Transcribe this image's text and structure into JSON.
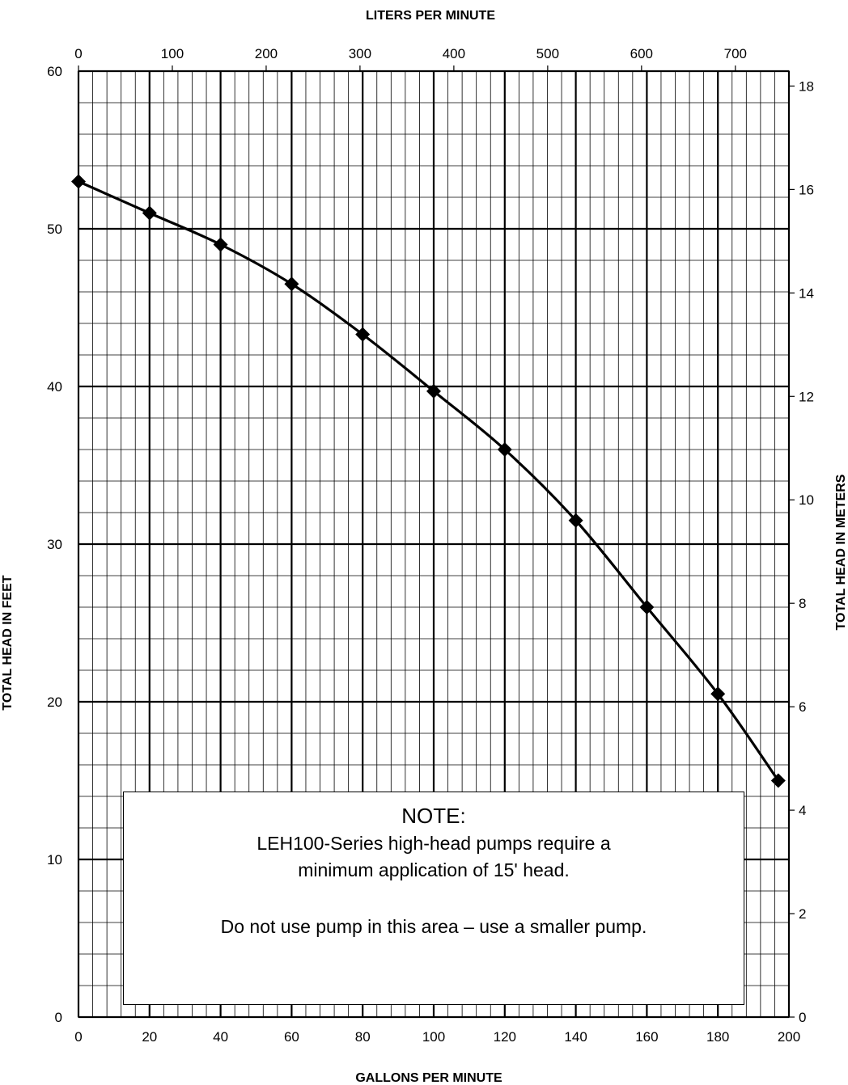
{
  "chart_data": {
    "type": "line",
    "title": "",
    "x_axis": {
      "label": "GALLONS PER MINUTE",
      "range": [
        0,
        200
      ],
      "ticks": [
        0,
        20,
        40,
        60,
        80,
        100,
        120,
        140,
        160,
        180,
        200
      ],
      "minor_step": 4
    },
    "x2_axis": {
      "label": "LITERS PER MINUTE",
      "ticks": [
        0,
        100,
        200,
        300,
        400,
        500,
        600,
        700
      ],
      "gpm_per_lpm": 0.264172
    },
    "y_axis": {
      "label": "TOTAL HEAD IN FEET",
      "range": [
        0,
        60
      ],
      "ticks": [
        0,
        10,
        20,
        30,
        40,
        50,
        60
      ],
      "minor_step": 2
    },
    "y2_axis": {
      "label": "TOTAL HEAD IN METERS",
      "ticks": [
        0,
        2,
        4,
        6,
        8,
        10,
        12,
        14,
        16,
        18
      ],
      "feet_per_meter": 3.28084
    },
    "grid": true,
    "series": [
      {
        "x": [
          0,
          20,
          40,
          60,
          80,
          100,
          120,
          140,
          160,
          180,
          197
        ],
        "y": [
          53,
          51,
          49,
          46.5,
          43.3,
          39.7,
          36,
          31.5,
          26,
          20.5,
          15
        ],
        "marker": "diamond",
        "color": "#000000"
      }
    ],
    "annotation": {
      "title": "NOTE:",
      "lines": [
        "LEH100-Series high-head pumps require a",
        "minimum application of 15' head.",
        "Do not use pump in this area – use a smaller pump."
      ]
    }
  }
}
